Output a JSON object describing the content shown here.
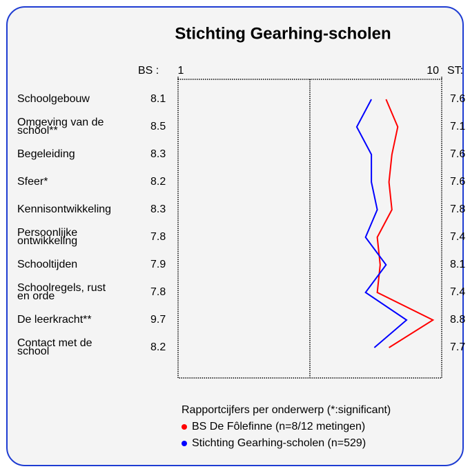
{
  "chart_data": {
    "type": "line",
    "title": "Stichting Gearhing-scholen",
    "left_header": "BS :",
    "right_header": "ST:",
    "categories": [
      "Schoolgebouw",
      "Omgeving van de\nschool**",
      "Begeleiding",
      "Sfeer*",
      "Kennisontwikkeling",
      "Persoonlijke\nontwikkeling",
      "Schooltijden",
      "Schoolregels, rust\nen orde",
      "De leerkracht**",
      "Contact met de\nschool"
    ],
    "series": [
      {
        "name": "BS De Fôlefinne (n=8/12 metingen)",
        "color": "#ff0000",
        "values": [
          8.1,
          8.5,
          8.3,
          8.2,
          8.3,
          7.8,
          7.9,
          7.8,
          9.7,
          8.2
        ]
      },
      {
        "name": "Stichting Gearhing-scholen (n=529)",
        "color": "#0000ff",
        "values": [
          7.6,
          7.1,
          7.6,
          7.6,
          7.8,
          7.4,
          8.1,
          7.4,
          8.8,
          7.7
        ]
      }
    ],
    "xlim": [
      1,
      10
    ],
    "xticks": [
      1,
      10
    ],
    "reference_line": 5.5,
    "legend_title": "Rapportcijfers per onderwerp (*:significant)"
  }
}
